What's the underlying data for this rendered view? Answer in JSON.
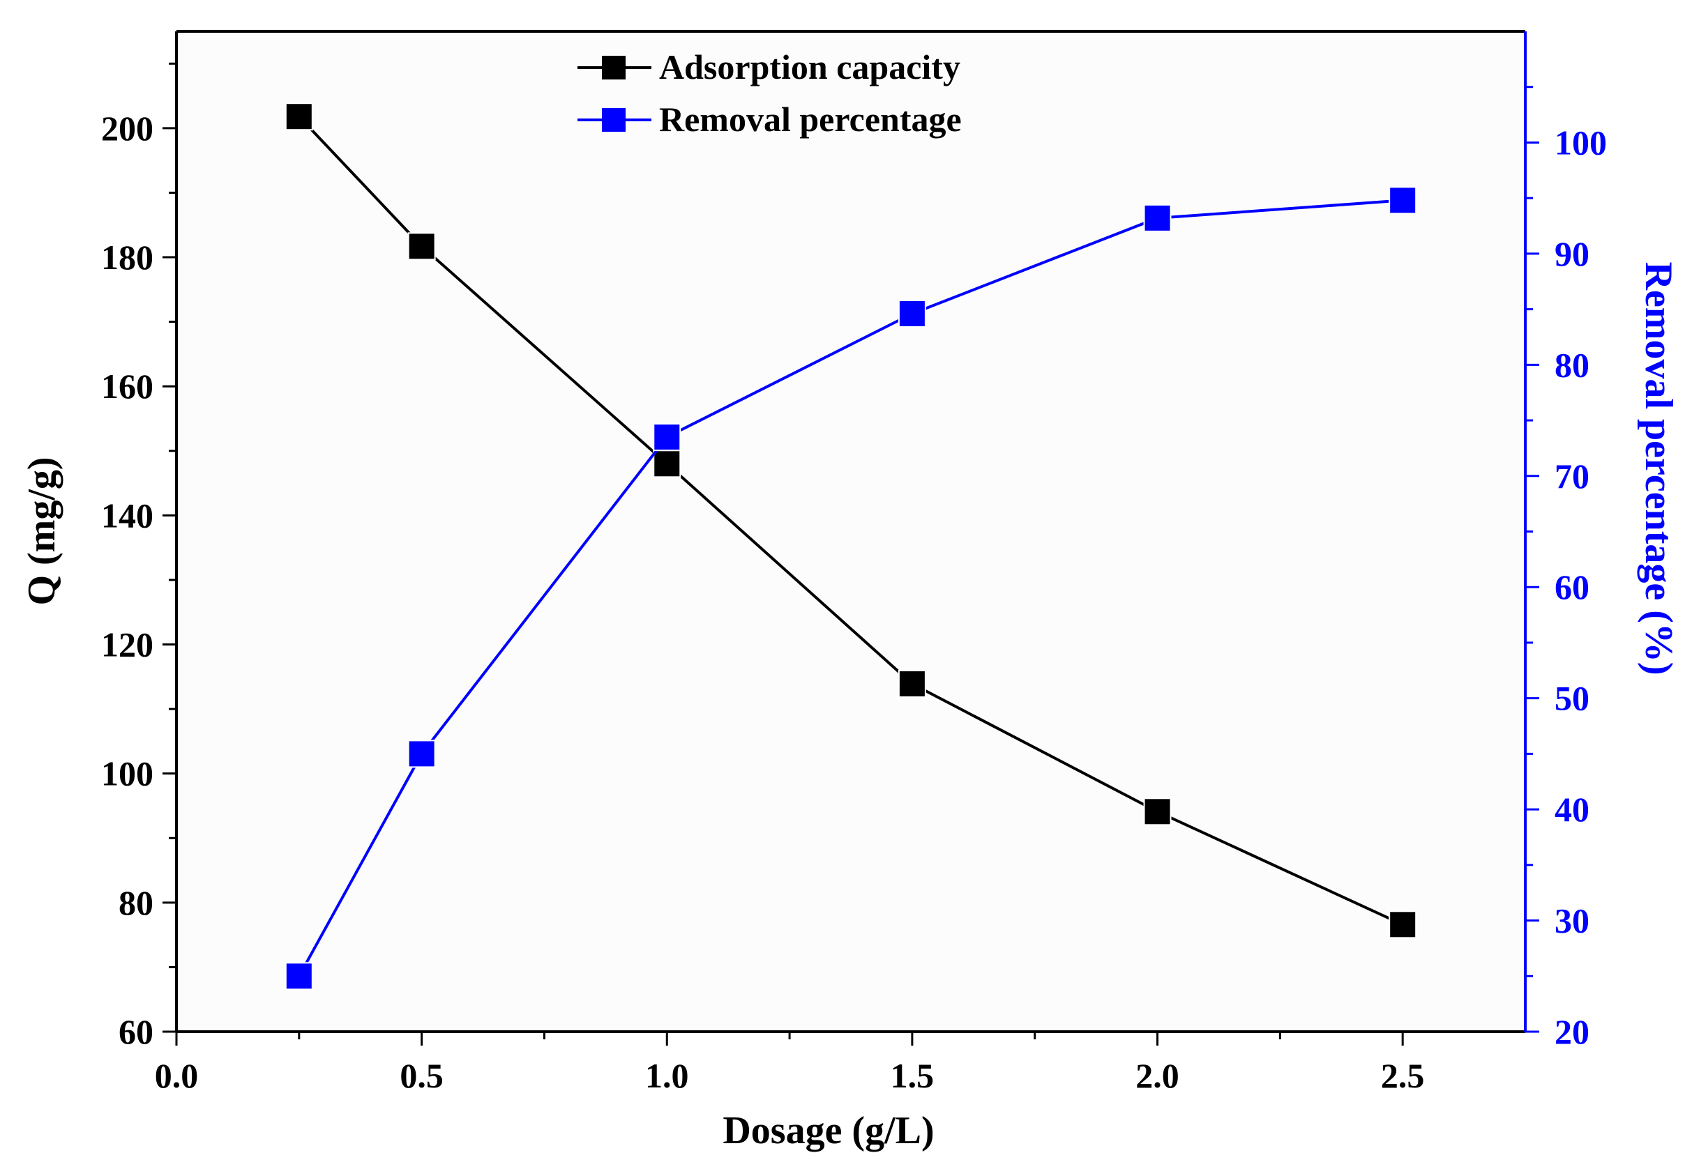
{
  "chart_data": {
    "type": "line",
    "title": "",
    "xlabel": "Dosage (g/L)",
    "ylabel": "Q (mg/g)",
    "y2label": "Removal percentage (%)",
    "xlim": [
      0.0,
      2.75
    ],
    "ylim": [
      60,
      215
    ],
    "y2lim": [
      20,
      110
    ],
    "xticks": [
      0.0,
      0.5,
      1.0,
      1.5,
      2.0,
      2.5
    ],
    "xtick_labels": [
      "0.0",
      "0.5",
      "1.0",
      "1.5",
      "2.0",
      "2.5"
    ],
    "yticks": [
      60,
      80,
      100,
      120,
      140,
      160,
      180,
      200
    ],
    "ytick_labels": [
      "60",
      "80",
      "100",
      "120",
      "140",
      "160",
      "180",
      "200"
    ],
    "y2ticks": [
      20,
      30,
      40,
      50,
      60,
      70,
      80,
      90,
      100
    ],
    "y2tick_labels": [
      "20",
      "30",
      "40",
      "50",
      "60",
      "70",
      "80",
      "90",
      "100"
    ],
    "grid": false,
    "legend_position": "top-center",
    "series": [
      {
        "name": "Adsorption capacity",
        "axis": "left",
        "color": "#000000",
        "marker": "square",
        "x": [
          0.25,
          0.5,
          1.0,
          1.5,
          2.0,
          2.5
        ],
        "values": [
          201.8,
          181.7,
          148.0,
          113.9,
          94.1,
          76.6
        ]
      },
      {
        "name": "Removal percentage",
        "axis": "right",
        "color": "#0000ff",
        "marker": "square",
        "x": [
          0.25,
          0.5,
          1.0,
          1.5,
          2.0,
          2.5
        ],
        "values": [
          25.0,
          45.0,
          73.5,
          84.6,
          93.2,
          94.8
        ]
      }
    ]
  }
}
